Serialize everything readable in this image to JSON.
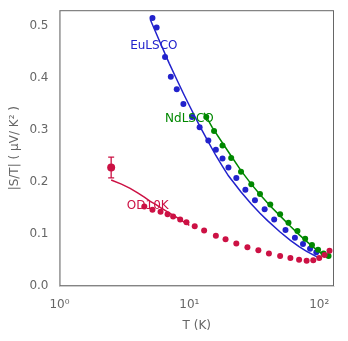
{
  "chart_data": {
    "type": "scatter",
    "title": "",
    "xlabel": "T (K)",
    "ylabel": "|S/T| ( μV/ K² )",
    "log": "x",
    "grid": false,
    "xlim": [
      1.0,
      130
    ],
    "xticks": [
      {
        "value": 1,
        "label": "10⁰"
      },
      {
        "value": 10,
        "label": "10¹"
      },
      {
        "value": 100,
        "label": "10²"
      }
    ],
    "ylim": [
      0.0,
      0.53
    ],
    "yticks": [
      {
        "value": 0.0,
        "label": "0.0"
      },
      0.1,
      0.2,
      0.3,
      0.4,
      0.5
    ],
    "series": [
      {
        "name": "OD10K",
        "color": "#cc1144",
        "marker": "circle",
        "line_style": "none",
        "x": [
          4.5,
          5.2,
          6.0,
          6.8,
          7.5,
          8.5,
          9.5,
          11.0,
          13.0,
          16.0,
          19.0,
          23.0,
          28.0,
          34.0,
          41.0,
          50.0,
          60.0,
          70.0,
          80.0,
          90.0,
          100.0,
          110.0,
          120.0
        ],
        "values": [
          0.153,
          0.147,
          0.143,
          0.138,
          0.134,
          0.128,
          0.123,
          0.115,
          0.107,
          0.097,
          0.09,
          0.082,
          0.075,
          0.069,
          0.063,
          0.058,
          0.054,
          0.051,
          0.049,
          0.05,
          0.054,
          0.06,
          0.068
        ]
      },
      {
        "name": "OD10K",
        "color": "#cc1144",
        "marker": "none",
        "line_style": "solid",
        "x": [
          2.5,
          3.0,
          3.5,
          4.0,
          4.5,
          5.0,
          5.5,
          6.0,
          7.0,
          8.0,
          9.0,
          10.0
        ],
        "values": [
          0.204,
          0.196,
          0.188,
          0.179,
          0.171,
          0.163,
          0.157,
          0.151,
          0.141,
          0.132,
          0.124,
          0.117
        ]
      },
      {
        "name": "OD10K",
        "color": "#cc1144",
        "marker": "circle",
        "line_style": "none",
        "x": [
          2.5
        ],
        "values": [
          0.228
        ],
        "yerr": [
          0.02
        ]
      },
      {
        "name": "NdLSCO",
        "color": "#008800",
        "marker": "circle",
        "line_style": "none",
        "x": [
          13.5,
          15.5,
          18.0,
          21.0,
          25.0,
          30.0,
          35.0,
          42.0,
          50.0,
          58.0,
          68.0,
          78.0,
          88.0,
          98.0,
          108.0,
          118.0
        ],
        "values": [
          0.325,
          0.298,
          0.27,
          0.246,
          0.22,
          0.196,
          0.177,
          0.157,
          0.138,
          0.122,
          0.106,
          0.091,
          0.079,
          0.07,
          0.063,
          0.058
        ]
      },
      {
        "name": "NdLSCO",
        "color": "#008800",
        "marker": "none",
        "line_style": "solid",
        "x": [
          13.0,
          15.0,
          18.0,
          21.0,
          25.0,
          30.0,
          35.0,
          42.0,
          50.0,
          60.0,
          70.0,
          80.0,
          90.0,
          100.0,
          115.0
        ],
        "values": [
          0.333,
          0.305,
          0.275,
          0.25,
          0.222,
          0.196,
          0.176,
          0.154,
          0.135,
          0.115,
          0.099,
          0.086,
          0.075,
          0.066,
          0.056
        ]
      },
      {
        "name": "EuLSCO",
        "color": "#2222cc",
        "marker": "circle",
        "line_style": "none",
        "x": [
          5.2,
          5.6,
          6.5,
          7.2,
          8.0,
          9.0,
          10.5,
          12.0,
          14.0,
          16.0,
          18.0,
          20.0,
          23.0,
          27.0,
          32.0,
          38.0,
          45.0,
          55.0,
          65.0,
          75.0,
          85.0,
          95.0
        ],
        "values": [
          0.515,
          0.497,
          0.44,
          0.402,
          0.378,
          0.35,
          0.325,
          0.305,
          0.28,
          0.262,
          0.245,
          0.228,
          0.208,
          0.185,
          0.165,
          0.148,
          0.128,
          0.108,
          0.093,
          0.081,
          0.072,
          0.065
        ]
      },
      {
        "name": "EuLSCO",
        "color": "#2222cc",
        "marker": "none",
        "line_style": "solid",
        "x": [
          5.0,
          5.5,
          6.0,
          7.0,
          8.0,
          9.0,
          10.0,
          12.0,
          14.0,
          16.0,
          18.0,
          20.0,
          25.0,
          30.0,
          35.0,
          40.0,
          50.0,
          60.0,
          70.0,
          80.0,
          90.0,
          100.0
        ],
        "values": [
          0.512,
          0.488,
          0.466,
          0.428,
          0.397,
          0.37,
          0.347,
          0.308,
          0.277,
          0.251,
          0.23,
          0.212,
          0.181,
          0.158,
          0.14,
          0.126,
          0.104,
          0.088,
          0.076,
          0.067,
          0.06,
          0.054
        ]
      }
    ],
    "annotations": [
      {
        "text": "EuLSCO",
        "x": 3.5,
        "y": 0.455,
        "color": "#2222cc"
      },
      {
        "text": "NdLSCO",
        "x": 6.5,
        "y": 0.316,
        "color": "#008800"
      },
      {
        "text": "OD10K",
        "x": 3.3,
        "y": 0.148,
        "color": "#cc1144"
      }
    ]
  }
}
